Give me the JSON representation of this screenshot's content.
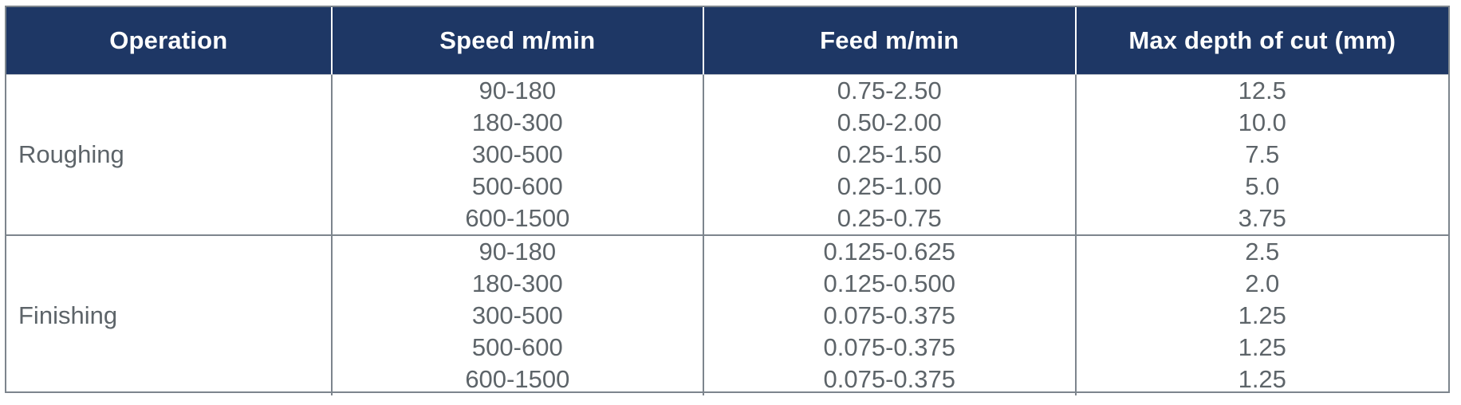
{
  "table": {
    "columns": [
      "Operation",
      "Speed m/min",
      "Feed m/min",
      "Max depth of cut (mm)"
    ],
    "sections": [
      {
        "operation": "Roughing",
        "rows": [
          {
            "speed": "90-180",
            "feed": "0.75-2.50",
            "depth": "12.5"
          },
          {
            "speed": "180-300",
            "feed": "0.50-2.00",
            "depth": "10.0"
          },
          {
            "speed": "300-500",
            "feed": "0.25-1.50",
            "depth": "7.5"
          },
          {
            "speed": "500-600",
            "feed": "0.25-1.00",
            "depth": "5.0"
          },
          {
            "speed": "600-1500",
            "feed": "0.25-0.75",
            "depth": "3.75"
          }
        ]
      },
      {
        "operation": "Finishing",
        "rows": [
          {
            "speed": "90-180",
            "feed": "0.125-0.625",
            "depth": "2.5"
          },
          {
            "speed": "180-300",
            "feed": "0.125-0.500",
            "depth": "2.0"
          },
          {
            "speed": "300-500",
            "feed": "0.075-0.375",
            "depth": "1.25"
          },
          {
            "speed": "500-600",
            "feed": "0.075-0.375",
            "depth": "1.25"
          },
          {
            "speed": "600-1500",
            "feed": "0.075-0.375",
            "depth": "1.25"
          }
        ]
      }
    ]
  },
  "colors": {
    "header_bg": "#1e3765",
    "header_text": "#ffffff",
    "body_text": "#5d6469",
    "border": "#7d858d"
  }
}
